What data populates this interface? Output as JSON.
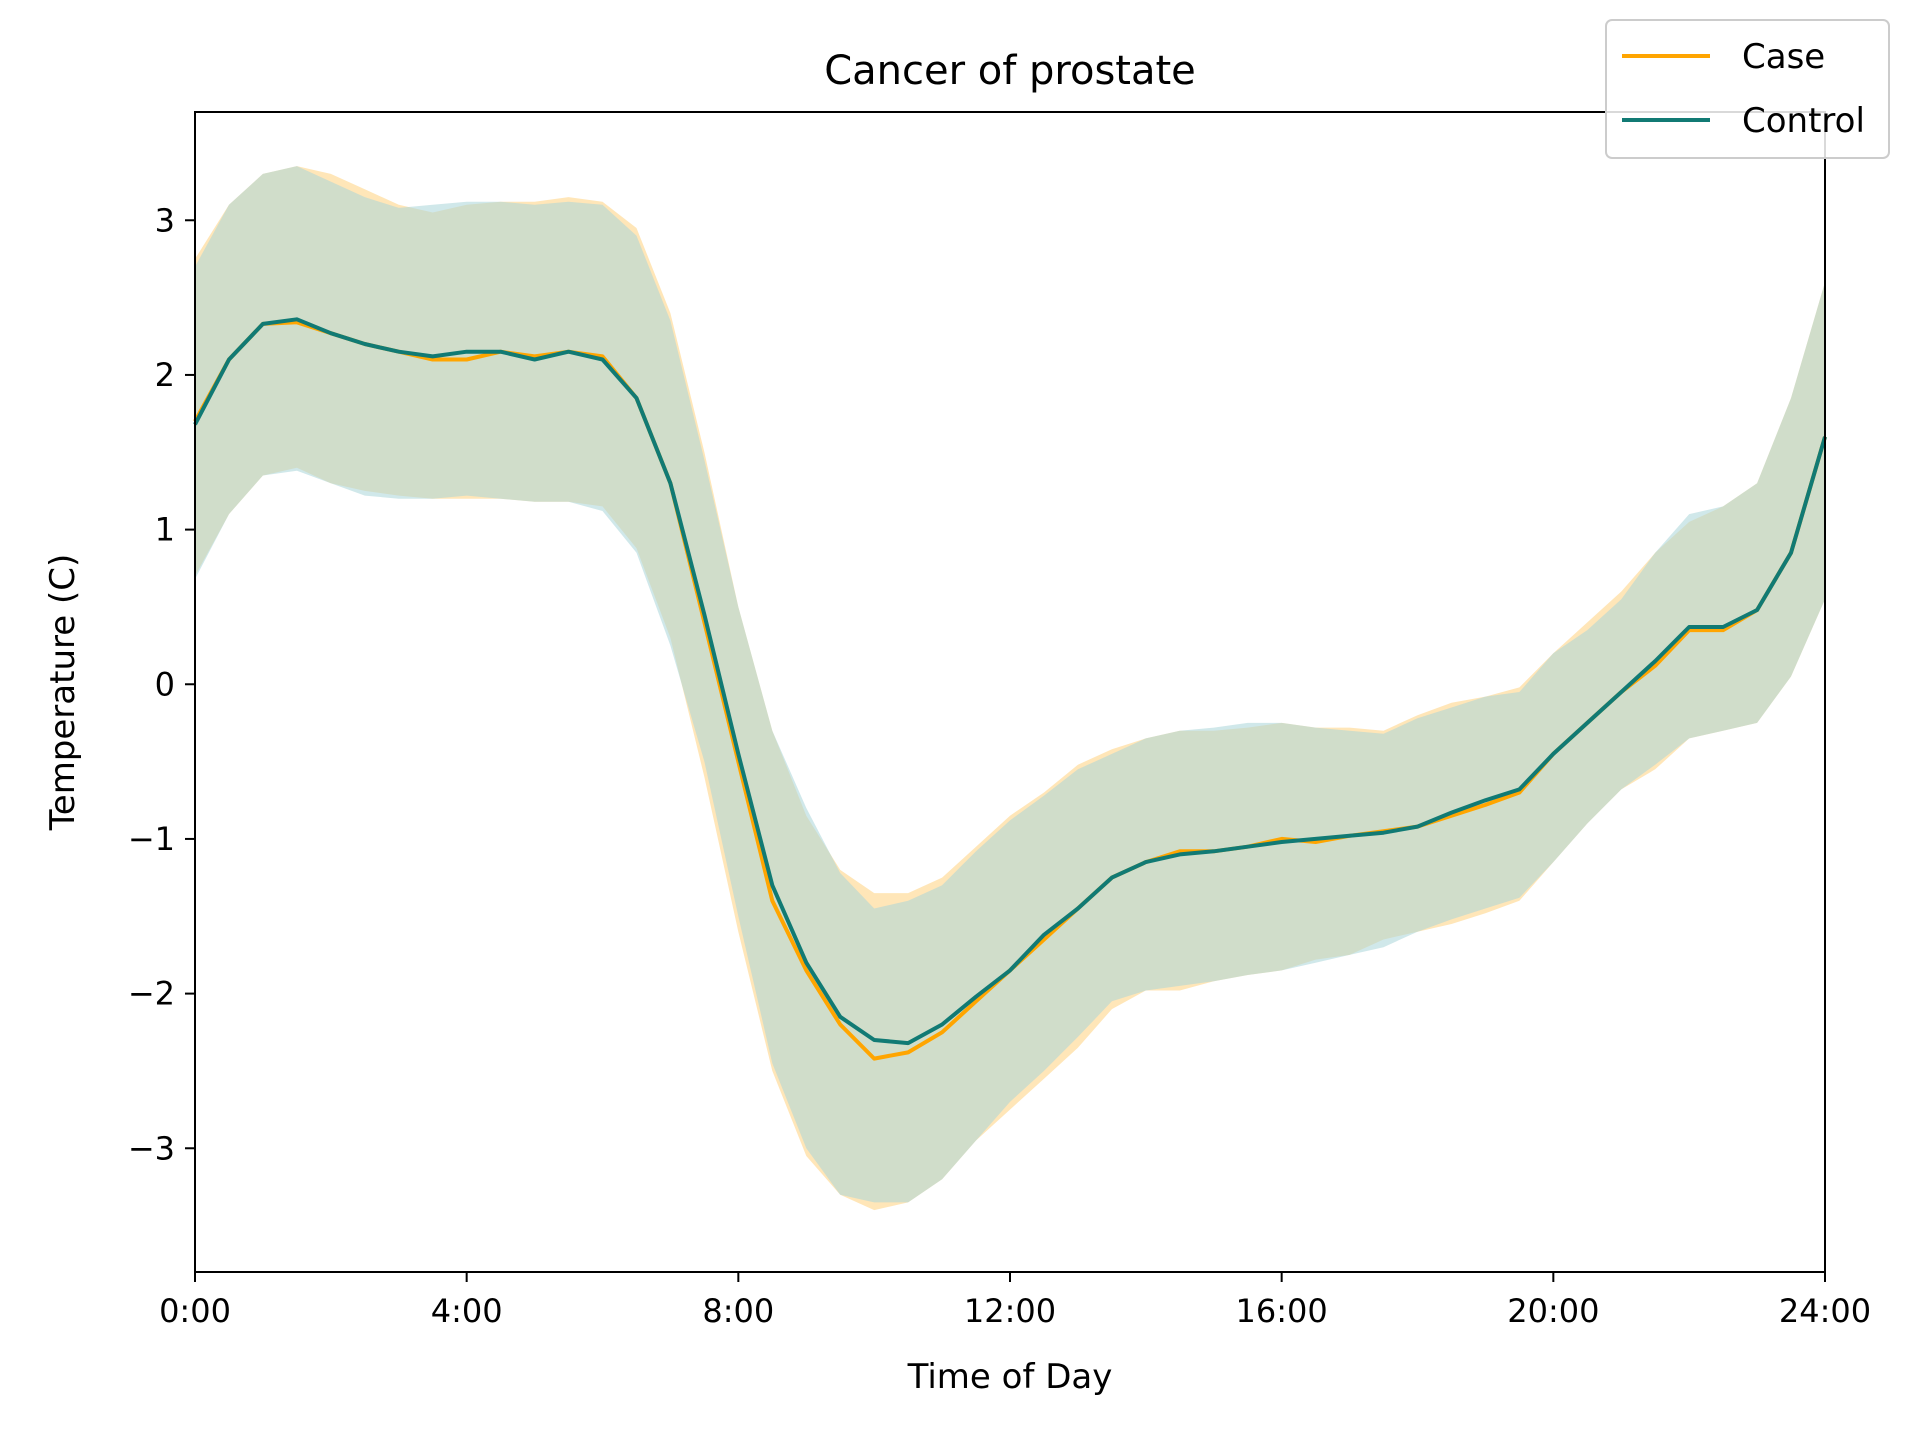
{
  "chart_data": {
    "type": "line",
    "title": "Cancer of prostate",
    "xlabel": "Time of Day",
    "ylabel": "Temperature (C)",
    "xlim": [
      0,
      24
    ],
    "ylim": [
      -3.8,
      3.7
    ],
    "x_tick_labels": [
      "0:00",
      "4:00",
      "8:00",
      "12:00",
      "16:00",
      "20:00",
      "24:00"
    ],
    "x_tick_values": [
      0,
      4,
      8,
      12,
      16,
      20,
      24
    ],
    "y_tick_labels": [
      "−3",
      "−2",
      "−1",
      "0",
      "1",
      "2",
      "3"
    ],
    "y_tick_values": [
      -3,
      -2,
      -1,
      0,
      1,
      2,
      3
    ],
    "grid": false,
    "legend_position": "top-right",
    "x": [
      0,
      0.5,
      1,
      1.5,
      2,
      2.5,
      3,
      3.5,
      4,
      4.5,
      5,
      5.5,
      6,
      6.5,
      7,
      7.5,
      8,
      8.5,
      9,
      9.5,
      10,
      10.5,
      11,
      11.5,
      12,
      12.5,
      13,
      13.5,
      14,
      14.5,
      15,
      15.5,
      16,
      16.5,
      17,
      17.5,
      18,
      18.5,
      19,
      19.5,
      20,
      20.5,
      21,
      21.5,
      22,
      22.5,
      23,
      23.5,
      24
    ],
    "series": [
      {
        "name": "Case",
        "color": "#FFA500",
        "band_color": "#FFDEA0",
        "mean": [
          1.7,
          2.1,
          2.33,
          2.34,
          2.27,
          2.2,
          2.15,
          2.1,
          2.1,
          2.15,
          2.12,
          2.15,
          2.12,
          1.85,
          1.3,
          0.4,
          -0.5,
          -1.4,
          -1.85,
          -2.2,
          -2.42,
          -2.38,
          -2.25,
          -2.05,
          -1.85,
          -1.65,
          -1.45,
          -1.25,
          -1.15,
          -1.08,
          -1.08,
          -1.05,
          -1.0,
          -1.02,
          -0.98,
          -0.95,
          -0.92,
          -0.85,
          -0.78,
          -0.7,
          -0.45,
          -0.25,
          -0.05,
          0.12,
          0.35,
          0.35,
          0.48,
          0.85,
          1.6
        ],
        "upper": [
          2.75,
          3.1,
          3.3,
          3.35,
          3.3,
          3.2,
          3.1,
          3.05,
          3.1,
          3.12,
          3.12,
          3.15,
          3.12,
          2.95,
          2.4,
          1.5,
          0.5,
          -0.3,
          -0.85,
          -1.2,
          -1.35,
          -1.35,
          -1.25,
          -1.05,
          -0.85,
          -0.7,
          -0.52,
          -0.42,
          -0.35,
          -0.3,
          -0.3,
          -0.28,
          -0.25,
          -0.28,
          -0.28,
          -0.3,
          -0.2,
          -0.12,
          -0.08,
          -0.02,
          0.2,
          0.4,
          0.6,
          0.85,
          1.05,
          1.15,
          1.3,
          1.85,
          2.6
        ],
        "lower": [
          0.7,
          1.1,
          1.35,
          1.4,
          1.3,
          1.25,
          1.22,
          1.2,
          1.2,
          1.2,
          1.18,
          1.18,
          1.15,
          0.88,
          0.3,
          -0.6,
          -1.6,
          -2.5,
          -3.05,
          -3.3,
          -3.4,
          -3.35,
          -3.2,
          -2.95,
          -2.75,
          -2.55,
          -2.35,
          -2.1,
          -1.98,
          -1.98,
          -1.92,
          -1.88,
          -1.85,
          -1.78,
          -1.75,
          -1.65,
          -1.6,
          -1.55,
          -1.48,
          -1.4,
          -1.15,
          -0.9,
          -0.68,
          -0.55,
          -0.35,
          -0.3,
          -0.25,
          0.05,
          0.55
        ]
      },
      {
        "name": "Control",
        "color": "#117A74",
        "band_color": "#A9D5D8",
        "mean": [
          1.68,
          2.1,
          2.33,
          2.36,
          2.27,
          2.2,
          2.15,
          2.12,
          2.15,
          2.15,
          2.1,
          2.15,
          2.1,
          1.85,
          1.3,
          0.45,
          -0.45,
          -1.3,
          -1.8,
          -2.15,
          -2.3,
          -2.32,
          -2.2,
          -2.02,
          -1.85,
          -1.62,
          -1.45,
          -1.25,
          -1.15,
          -1.1,
          -1.08,
          -1.05,
          -1.02,
          -1.0,
          -0.98,
          -0.96,
          -0.92,
          -0.83,
          -0.75,
          -0.68,
          -0.45,
          -0.25,
          -0.05,
          0.15,
          0.37,
          0.37,
          0.48,
          0.85,
          1.6
        ],
        "upper": [
          2.7,
          3.1,
          3.3,
          3.35,
          3.25,
          3.15,
          3.08,
          3.1,
          3.12,
          3.12,
          3.1,
          3.12,
          3.1,
          2.9,
          2.35,
          1.45,
          0.5,
          -0.3,
          -0.8,
          -1.22,
          -1.45,
          -1.4,
          -1.3,
          -1.08,
          -0.88,
          -0.72,
          -0.55,
          -0.45,
          -0.35,
          -0.3,
          -0.28,
          -0.25,
          -0.25,
          -0.28,
          -0.3,
          -0.32,
          -0.22,
          -0.15,
          -0.08,
          -0.05,
          0.2,
          0.35,
          0.55,
          0.85,
          1.1,
          1.15,
          1.3,
          1.85,
          2.6
        ],
        "lower": [
          0.68,
          1.1,
          1.35,
          1.38,
          1.3,
          1.22,
          1.2,
          1.2,
          1.22,
          1.2,
          1.18,
          1.18,
          1.12,
          0.85,
          0.25,
          -0.5,
          -1.5,
          -2.45,
          -3.0,
          -3.3,
          -3.35,
          -3.35,
          -3.2,
          -2.95,
          -2.7,
          -2.5,
          -2.28,
          -2.05,
          -1.98,
          -1.95,
          -1.92,
          -1.88,
          -1.85,
          -1.8,
          -1.75,
          -1.7,
          -1.6,
          -1.52,
          -1.45,
          -1.38,
          -1.15,
          -0.9,
          -0.68,
          -0.52,
          -0.35,
          -0.3,
          -0.25,
          0.05,
          0.55
        ]
      }
    ]
  }
}
